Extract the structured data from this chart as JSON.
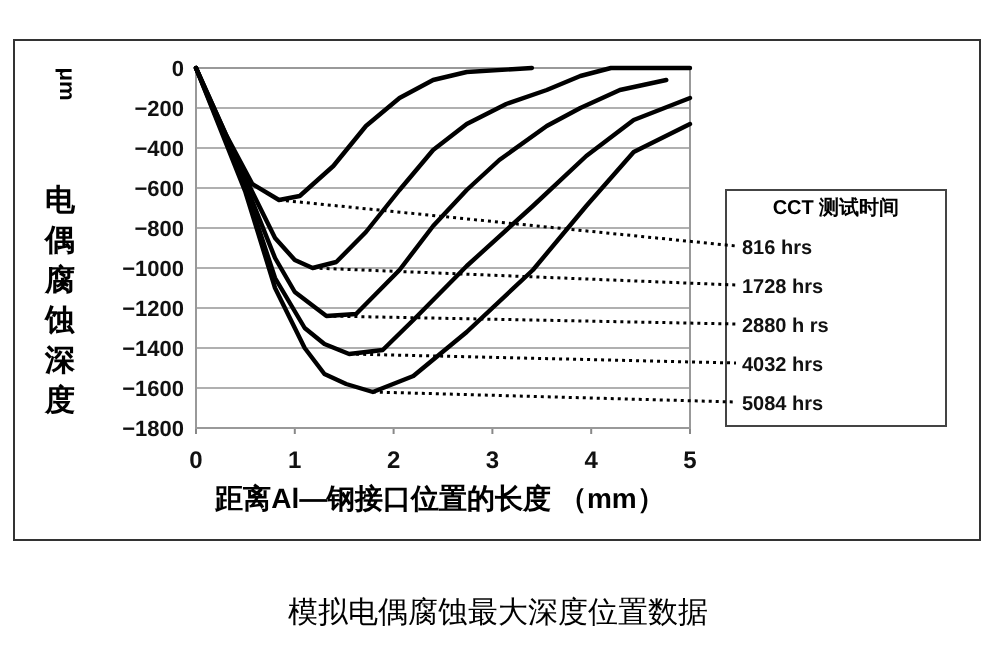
{
  "chart_data": {
    "type": "line",
    "title": "模拟电偶腐蚀最大深度位置数据",
    "xlabel": "距离Al—钢接口位置的长度 （mm）",
    "ylabel": "电偶腐蚀深度",
    "annotations": [
      "μm"
    ],
    "legend_title": "CCT  测试时间",
    "legend": "right",
    "grid": "y",
    "marker": "none",
    "line_style": "solid",
    "xlim": [
      0,
      5
    ],
    "xticks": [
      0,
      1,
      2,
      3,
      4,
      5
    ],
    "ylim": [
      -1800,
      0
    ],
    "yticks": [
      -1800,
      -1600,
      -1400,
      -1200,
      -1000,
      -800,
      -600,
      -400,
      -200,
      0
    ],
    "series": [
      {
        "name": "816 hrs",
        "color": "#000000",
        "x": [
          0,
          0.3,
          0.57,
          0.84,
          1.05,
          1.39,
          1.72,
          2.06,
          2.4,
          2.74,
          3.4
        ],
        "values": [
          0,
          -330,
          -580,
          -660,
          -640,
          -490,
          -290,
          -150,
          -60,
          -20,
          0
        ]
      },
      {
        "name": "1728 hrs",
        "color": "#000000",
        "x": [
          0,
          0.5,
          0.8,
          1.0,
          1.18,
          1.42,
          1.72,
          2.06,
          2.4,
          2.74,
          3.14,
          3.55,
          3.89,
          4.2,
          5
        ],
        "values": [
          0,
          -550,
          -850,
          -960,
          -1000,
          -970,
          -820,
          -610,
          -410,
          -280,
          -180,
          -110,
          -40,
          0,
          0
        ]
      },
      {
        "name": "2880 h rs",
        "color": "#000000",
        "x": [
          0,
          0.5,
          0.8,
          1.0,
          1.32,
          1.62,
          2.06,
          2.4,
          2.74,
          3.07,
          3.55,
          3.89,
          4.29,
          4.76
        ],
        "values": [
          0,
          -580,
          -950,
          -1120,
          -1240,
          -1230,
          -1010,
          -790,
          -610,
          -460,
          -290,
          -200,
          -110,
          -60
        ]
      },
      {
        "name": "4032 hrs",
        "color": "#000000",
        "x": [
          0,
          0.5,
          0.8,
          1.1,
          1.3,
          1.55,
          1.89,
          2.2,
          2.74,
          3.41,
          3.95,
          4.43,
          5
        ],
        "values": [
          0,
          -600,
          -1050,
          -1300,
          -1380,
          -1430,
          -1410,
          -1260,
          -990,
          -690,
          -440,
          -260,
          -150
        ]
      },
      {
        "name": "5084 hrs",
        "color": "#000000",
        "x": [
          0,
          0.5,
          0.8,
          1.1,
          1.3,
          1.52,
          1.79,
          2.2,
          2.74,
          3.41,
          3.95,
          4.43,
          5
        ],
        "values": [
          0,
          -620,
          -1100,
          -1400,
          -1530,
          -1580,
          -1620,
          -1540,
          -1320,
          -1010,
          -690,
          -420,
          -280
        ]
      }
    ]
  }
}
